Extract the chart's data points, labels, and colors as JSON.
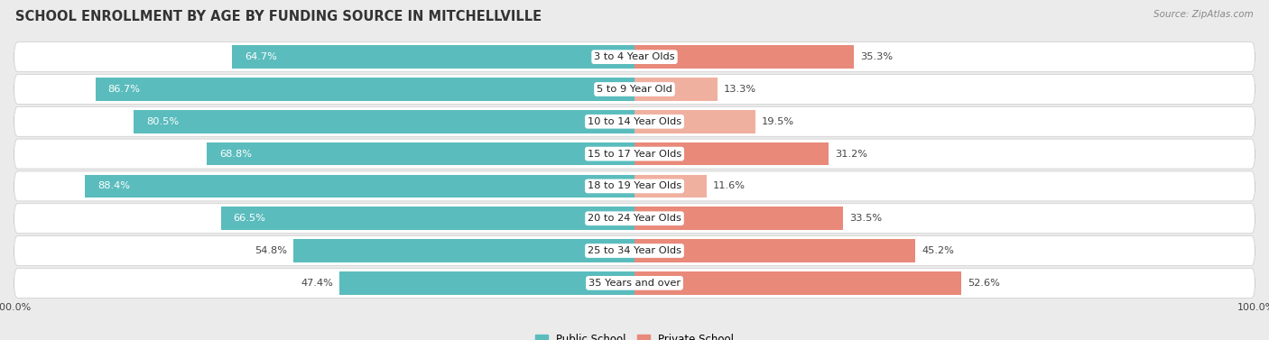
{
  "title": "SCHOOL ENROLLMENT BY AGE BY FUNDING SOURCE IN MITCHELLVILLE",
  "source": "Source: ZipAtlas.com",
  "categories": [
    "3 to 4 Year Olds",
    "5 to 9 Year Old",
    "10 to 14 Year Olds",
    "15 to 17 Year Olds",
    "18 to 19 Year Olds",
    "20 to 24 Year Olds",
    "25 to 34 Year Olds",
    "35 Years and over"
  ],
  "public_values": [
    64.7,
    86.7,
    80.5,
    68.8,
    88.4,
    66.5,
    54.8,
    47.4
  ],
  "private_values": [
    35.3,
    13.3,
    19.5,
    31.2,
    11.6,
    33.5,
    45.2,
    52.6
  ],
  "public_color": "#5bbcbd",
  "private_color": "#e8897a",
  "private_color_light": "#f0b0a0",
  "bg_color": "#ebebeb",
  "row_bg_color": "#ffffff",
  "title_fontsize": 10.5,
  "label_fontsize": 8.2,
  "value_fontsize": 8.2,
  "legend_fontsize": 8.5,
  "source_fontsize": 7.5,
  "white_text_threshold_pub": 60,
  "white_text_threshold_priv": 20
}
